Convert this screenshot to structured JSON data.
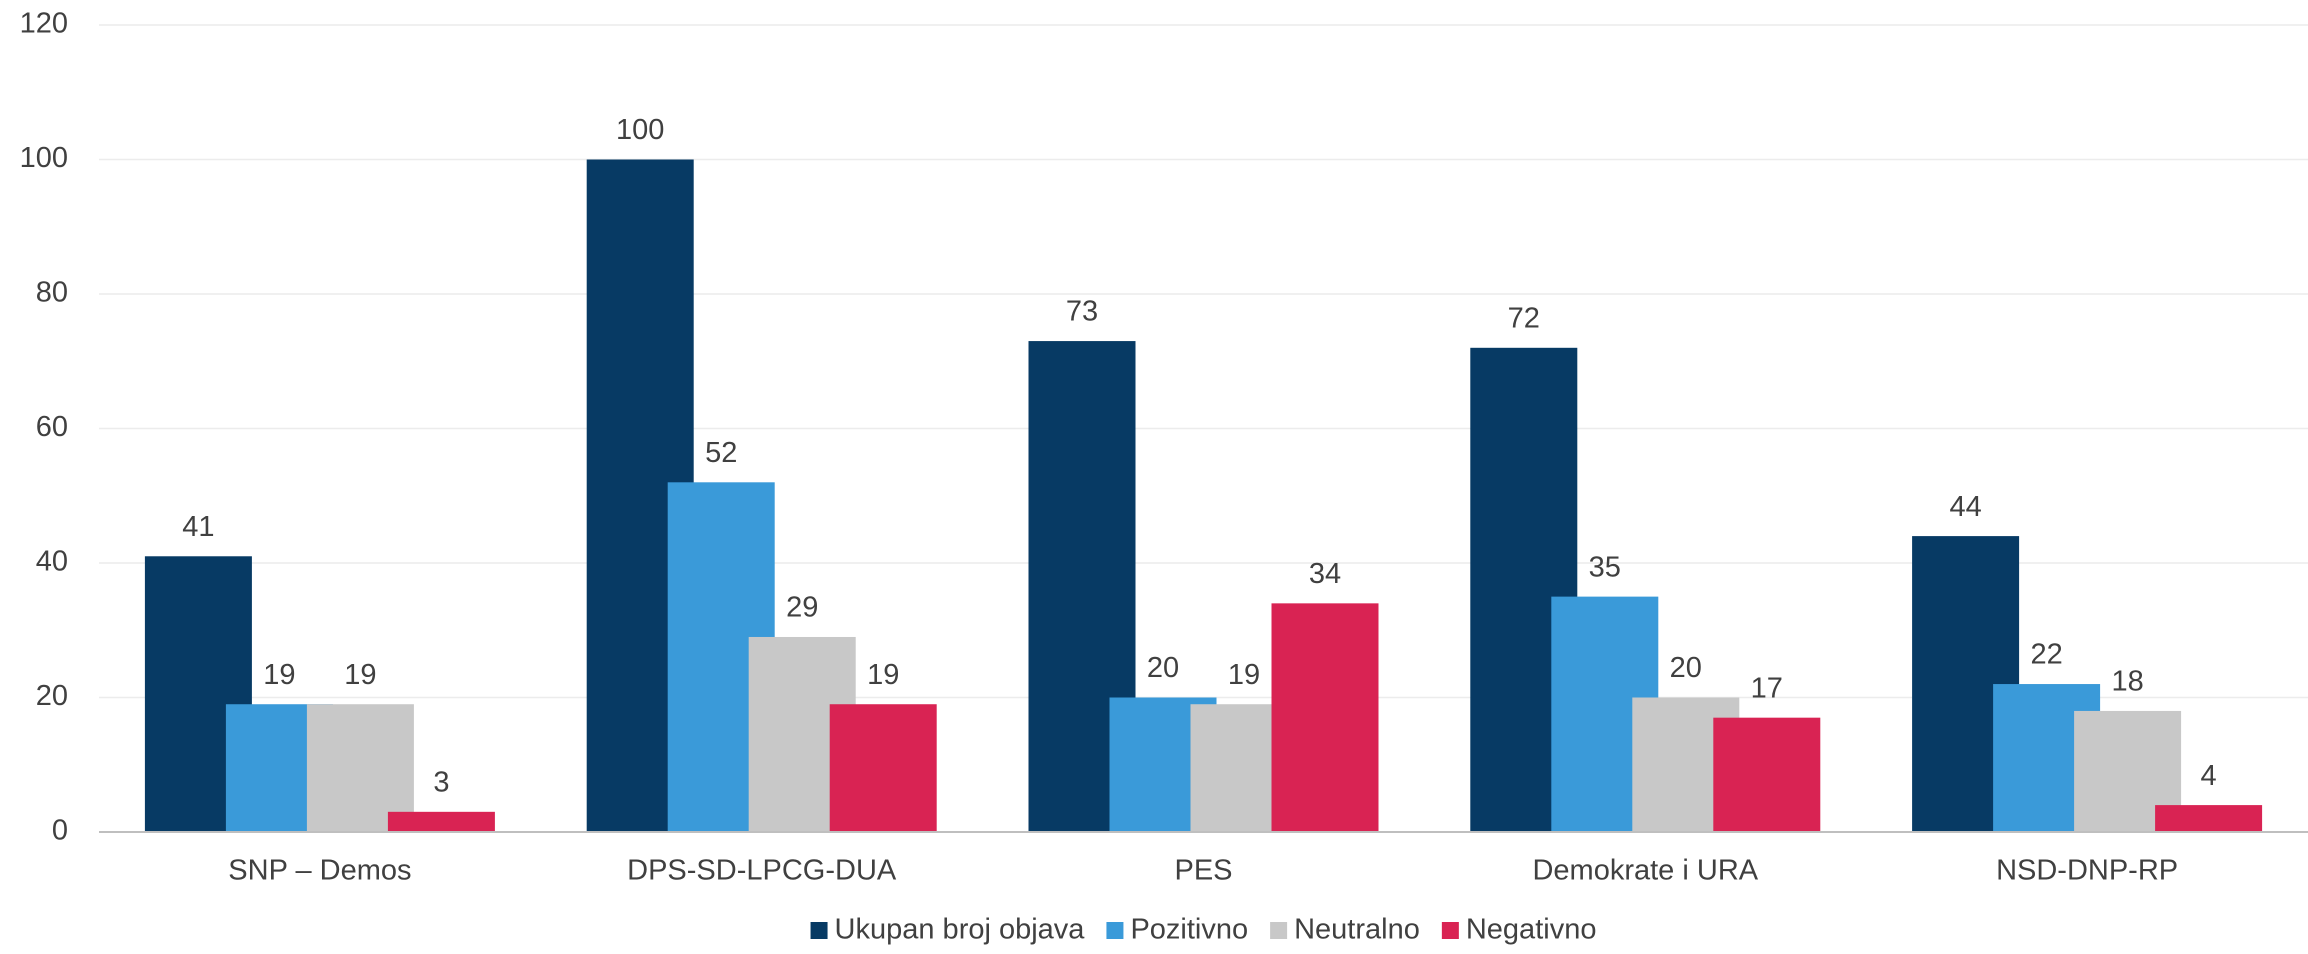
{
  "chart_data": {
    "type": "bar",
    "categories": [
      "SNP – Demos",
      "DPS-SD-LPCG-DUA",
      "PES",
      "Demokrate i URA",
      "NSD-DNP-RP"
    ],
    "series": [
      {
        "name": "Ukupan broj objava",
        "color": "#073a64",
        "values": [
          41,
          100,
          73,
          72,
          44
        ]
      },
      {
        "name": "Pozitivno",
        "color": "#3a9ad9",
        "values": [
          19,
          52,
          20,
          35,
          22
        ]
      },
      {
        "name": "Neutralno",
        "color": "#c8c8c8",
        "values": [
          19,
          29,
          19,
          20,
          18
        ]
      },
      {
        "name": "Negativno",
        "color": "#d92353",
        "values": [
          3,
          19,
          34,
          17,
          4
        ]
      }
    ],
    "ylim": [
      0,
      120
    ],
    "yticks": [
      0,
      20,
      40,
      60,
      80,
      100,
      120
    ],
    "grid": true,
    "legend": "bottom"
  }
}
